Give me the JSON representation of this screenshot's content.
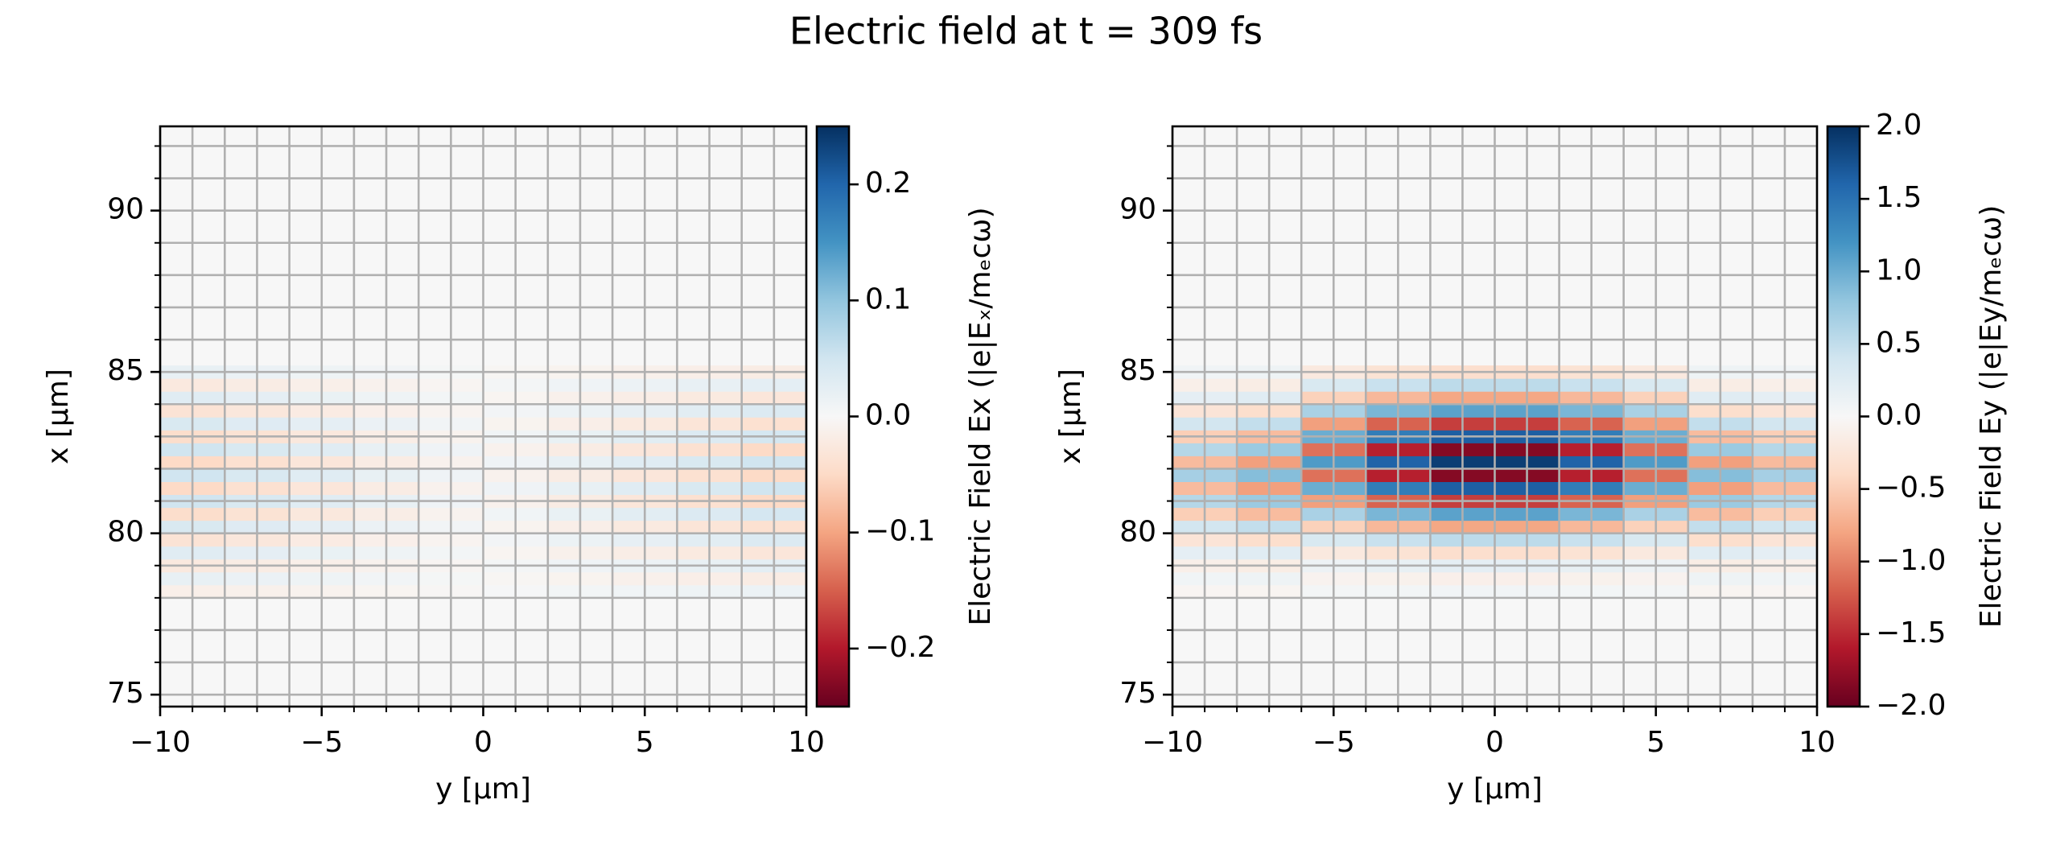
{
  "title": "Electric field at t = 309 fs",
  "chart_data": [
    {
      "type": "heatmap",
      "colormap": "RdBu",
      "grid": true,
      "xlabel": "y [µm]",
      "ylabel": "x [µm]",
      "colorbar_label": "Electric Field Ex (|e|Eₓ/mₑcω)",
      "xlim": [
        -10,
        10
      ],
      "ylim": [
        74.63,
        92.61
      ],
      "xticks": [
        {
          "value": -10,
          "label": "−10"
        },
        {
          "value": -5,
          "label": "−5"
        },
        0,
        5,
        10
      ],
      "yticks": [
        75,
        80,
        85,
        90
      ],
      "xminorticks": [
        -10,
        -9,
        -8,
        -7,
        -6,
        -5,
        -4,
        -3,
        -2,
        -1,
        0,
        1,
        2,
        3,
        4,
        5,
        6,
        7,
        8,
        9,
        10
      ],
      "yminorticks": [
        75,
        76,
        77,
        78,
        79,
        80,
        81,
        82,
        83,
        84,
        85,
        86,
        87,
        88,
        89,
        90,
        91,
        92
      ],
      "clim": [
        -0.25,
        0.25
      ],
      "cbar_ticks": [
        {
          "value": -0.2,
          "label": "−0.2"
        },
        {
          "value": -0.1,
          "label": "−0.1"
        },
        {
          "value": 0,
          "label": "0.0"
        },
        0.1,
        0.2
      ],
      "x": [
        -9,
        -7,
        -5,
        -3,
        -1,
        1,
        3,
        5,
        7,
        9
      ],
      "y": [
        78.2,
        78.6,
        79.0,
        79.4,
        79.8,
        80.2,
        80.6,
        81.0,
        81.4,
        81.8,
        82.2,
        82.6,
        83.0,
        83.4,
        83.8,
        84.2,
        84.6,
        85.0
      ],
      "values": [
        [
          -0.015,
          -0.012,
          -0.009,
          -0.006,
          -0.003,
          0.003,
          0.006,
          0.009,
          0.012,
          0.015
        ],
        [
          0.02,
          0.016,
          0.012,
          0.008,
          0.004,
          -0.004,
          -0.008,
          -0.012,
          -0.016,
          -0.02
        ],
        [
          -0.025,
          -0.02,
          -0.015,
          -0.01,
          -0.005,
          0.005,
          0.01,
          0.015,
          0.02,
          0.025
        ],
        [
          0.03,
          0.024,
          0.018,
          0.012,
          0.006,
          -0.006,
          -0.012,
          -0.018,
          -0.024,
          -0.03
        ],
        [
          -0.035,
          -0.028,
          -0.021,
          -0.014,
          -0.007,
          0.007,
          0.014,
          0.021,
          0.028,
          0.035
        ],
        [
          0.04,
          0.032,
          0.024,
          0.016,
          0.008,
          -0.008,
          -0.016,
          -0.024,
          -0.032,
          -0.04
        ],
        [
          -0.045,
          -0.036,
          -0.027,
          -0.018,
          -0.009,
          0.009,
          0.018,
          0.027,
          0.036,
          0.045
        ],
        [
          0.05,
          0.04,
          0.03,
          0.02,
          0.01,
          -0.01,
          -0.02,
          -0.03,
          -0.04,
          -0.05
        ],
        [
          -0.05,
          -0.04,
          -0.03,
          -0.02,
          -0.01,
          0.01,
          0.02,
          0.03,
          0.04,
          0.05
        ],
        [
          0.05,
          0.04,
          0.03,
          0.02,
          0.01,
          -0.01,
          -0.02,
          -0.03,
          -0.04,
          -0.05
        ],
        [
          -0.05,
          -0.04,
          -0.03,
          -0.02,
          -0.01,
          0.01,
          0.02,
          0.03,
          0.04,
          0.05
        ],
        [
          0.05,
          0.04,
          0.03,
          0.02,
          0.01,
          -0.01,
          -0.02,
          -0.03,
          -0.04,
          -0.05
        ],
        [
          -0.045,
          -0.036,
          -0.027,
          -0.018,
          -0.009,
          0.009,
          0.018,
          0.027,
          0.036,
          0.045
        ],
        [
          0.04,
          0.032,
          0.024,
          0.016,
          0.008,
          -0.008,
          -0.016,
          -0.024,
          -0.032,
          -0.04
        ],
        [
          -0.035,
          -0.028,
          -0.021,
          -0.014,
          -0.007,
          0.007,
          0.014,
          0.021,
          0.028,
          0.035
        ],
        [
          0.03,
          0.024,
          0.018,
          0.012,
          0.006,
          -0.006,
          -0.012,
          -0.018,
          -0.024,
          -0.03
        ],
        [
          -0.025,
          -0.02,
          -0.015,
          -0.01,
          -0.005,
          0.005,
          0.01,
          0.015,
          0.02,
          0.025
        ],
        [
          0.02,
          0.016,
          0.012,
          0.008,
          0.004,
          -0.004,
          -0.008,
          -0.012,
          -0.016,
          -0.02
        ]
      ]
    },
    {
      "type": "heatmap",
      "colormap": "RdBu",
      "grid": true,
      "xlabel": "y [µm]",
      "ylabel": "x [µm]",
      "colorbar_label": "Electric Field Ey (|e|Ey/mₑcω)",
      "xlim": [
        -10,
        10
      ],
      "ylim": [
        74.63,
        92.61
      ],
      "xticks": [
        {
          "value": -10,
          "label": "−10"
        },
        {
          "value": -5,
          "label": "−5"
        },
        0,
        5,
        10
      ],
      "yticks": [
        75,
        80,
        85,
        90
      ],
      "xminorticks": [
        -10,
        -9,
        -8,
        -7,
        -6,
        -5,
        -4,
        -3,
        -2,
        -1,
        0,
        1,
        2,
        3,
        4,
        5,
        6,
        7,
        8,
        9,
        10
      ],
      "yminorticks": [
        75,
        76,
        77,
        78,
        79,
        80,
        81,
        82,
        83,
        84,
        85,
        86,
        87,
        88,
        89,
        90,
        91,
        92
      ],
      "clim": [
        -2,
        2
      ],
      "cbar_ticks": [
        {
          "value": -2,
          "label": "−2.0"
        },
        {
          "value": -1.5,
          "label": "−1.5"
        },
        {
          "value": -1,
          "label": "−1.0"
        },
        {
          "value": -0.5,
          "label": "−0.5"
        },
        {
          "value": 0,
          "label": "0.0"
        },
        0.5,
        {
          "value": 1,
          "label": "1.0"
        },
        1.5,
        {
          "value": 2,
          "label": "2.0"
        }
      ],
      "x": [
        -9,
        -7,
        -5,
        -3,
        -1,
        1,
        3,
        5,
        7,
        9
      ],
      "y": [
        78.2,
        78.6,
        79.0,
        79.4,
        79.8,
        80.2,
        80.6,
        81.0,
        81.4,
        81.8,
        82.2,
        82.6,
        83.0,
        83.4,
        83.8,
        84.2,
        84.6,
        85.0
      ],
      "values": [
        [
          -0.04,
          -0.05,
          0.04,
          0.05,
          0.06,
          0.06,
          0.05,
          0.04,
          -0.05,
          -0.04
        ],
        [
          0.07,
          0.09,
          -0.07,
          -0.09,
          -0.11,
          -0.11,
          -0.09,
          -0.07,
          0.09,
          0.07
        ],
        [
          -0.12,
          -0.15,
          0.11,
          0.16,
          0.19,
          0.19,
          0.16,
          0.11,
          -0.15,
          -0.12
        ],
        [
          0.19,
          0.24,
          -0.2,
          -0.29,
          -0.34,
          -0.34,
          -0.29,
          -0.2,
          0.24,
          0.19
        ],
        [
          -0.27,
          -0.35,
          0.32,
          0.45,
          0.53,
          0.53,
          0.45,
          0.32,
          -0.35,
          -0.27
        ],
        [
          0.38,
          0.49,
          -0.47,
          -0.66,
          -0.78,
          -0.78,
          -0.66,
          -0.47,
          0.49,
          0.38
        ],
        [
          -0.49,
          -0.63,
          0.65,
          0.92,
          1.08,
          1.08,
          0.92,
          0.65,
          -0.63,
          -0.49
        ],
        [
          0.58,
          0.74,
          -0.83,
          -1.18,
          -1.39,
          -1.39,
          -1.18,
          -0.83,
          0.74,
          0.58
        ],
        [
          -0.64,
          -0.83,
          0.99,
          1.4,
          1.65,
          1.65,
          1.4,
          0.99,
          -0.83,
          -0.64
        ],
        [
          0.67,
          0.86,
          -1.1,
          -1.56,
          -1.84,
          -1.84,
          -1.56,
          -1.1,
          0.86,
          0.67
        ],
        [
          -0.64,
          -0.83,
          1.14,
          1.62,
          1.9,
          1.9,
          1.62,
          1.14,
          -0.83,
          -0.64
        ],
        [
          0.58,
          0.74,
          -1.1,
          -1.56,
          -1.84,
          -1.84,
          -1.56,
          -1.1,
          0.74,
          0.58
        ],
        [
          -0.49,
          -0.63,
          0.99,
          1.4,
          1.65,
          1.65,
          1.4,
          0.99,
          -0.63,
          -0.49
        ],
        [
          0.38,
          0.49,
          -0.83,
          -1.18,
          -1.39,
          -1.39,
          -1.18,
          -0.83,
          0.49,
          0.38
        ],
        [
          -0.27,
          -0.35,
          0.65,
          0.92,
          1.08,
          1.08,
          0.92,
          0.65,
          -0.35,
          -0.27
        ],
        [
          0.19,
          0.24,
          -0.47,
          -0.66,
          -0.78,
          -0.78,
          -0.66,
          -0.47,
          0.24,
          0.19
        ],
        [
          -0.12,
          -0.15,
          0.32,
          0.45,
          0.53,
          0.53,
          0.45,
          0.32,
          -0.15,
          -0.12
        ],
        [
          0.07,
          0.09,
          -0.2,
          -0.29,
          -0.34,
          -0.34,
          -0.29,
          -0.2,
          0.09,
          0.07
        ]
      ]
    }
  ]
}
